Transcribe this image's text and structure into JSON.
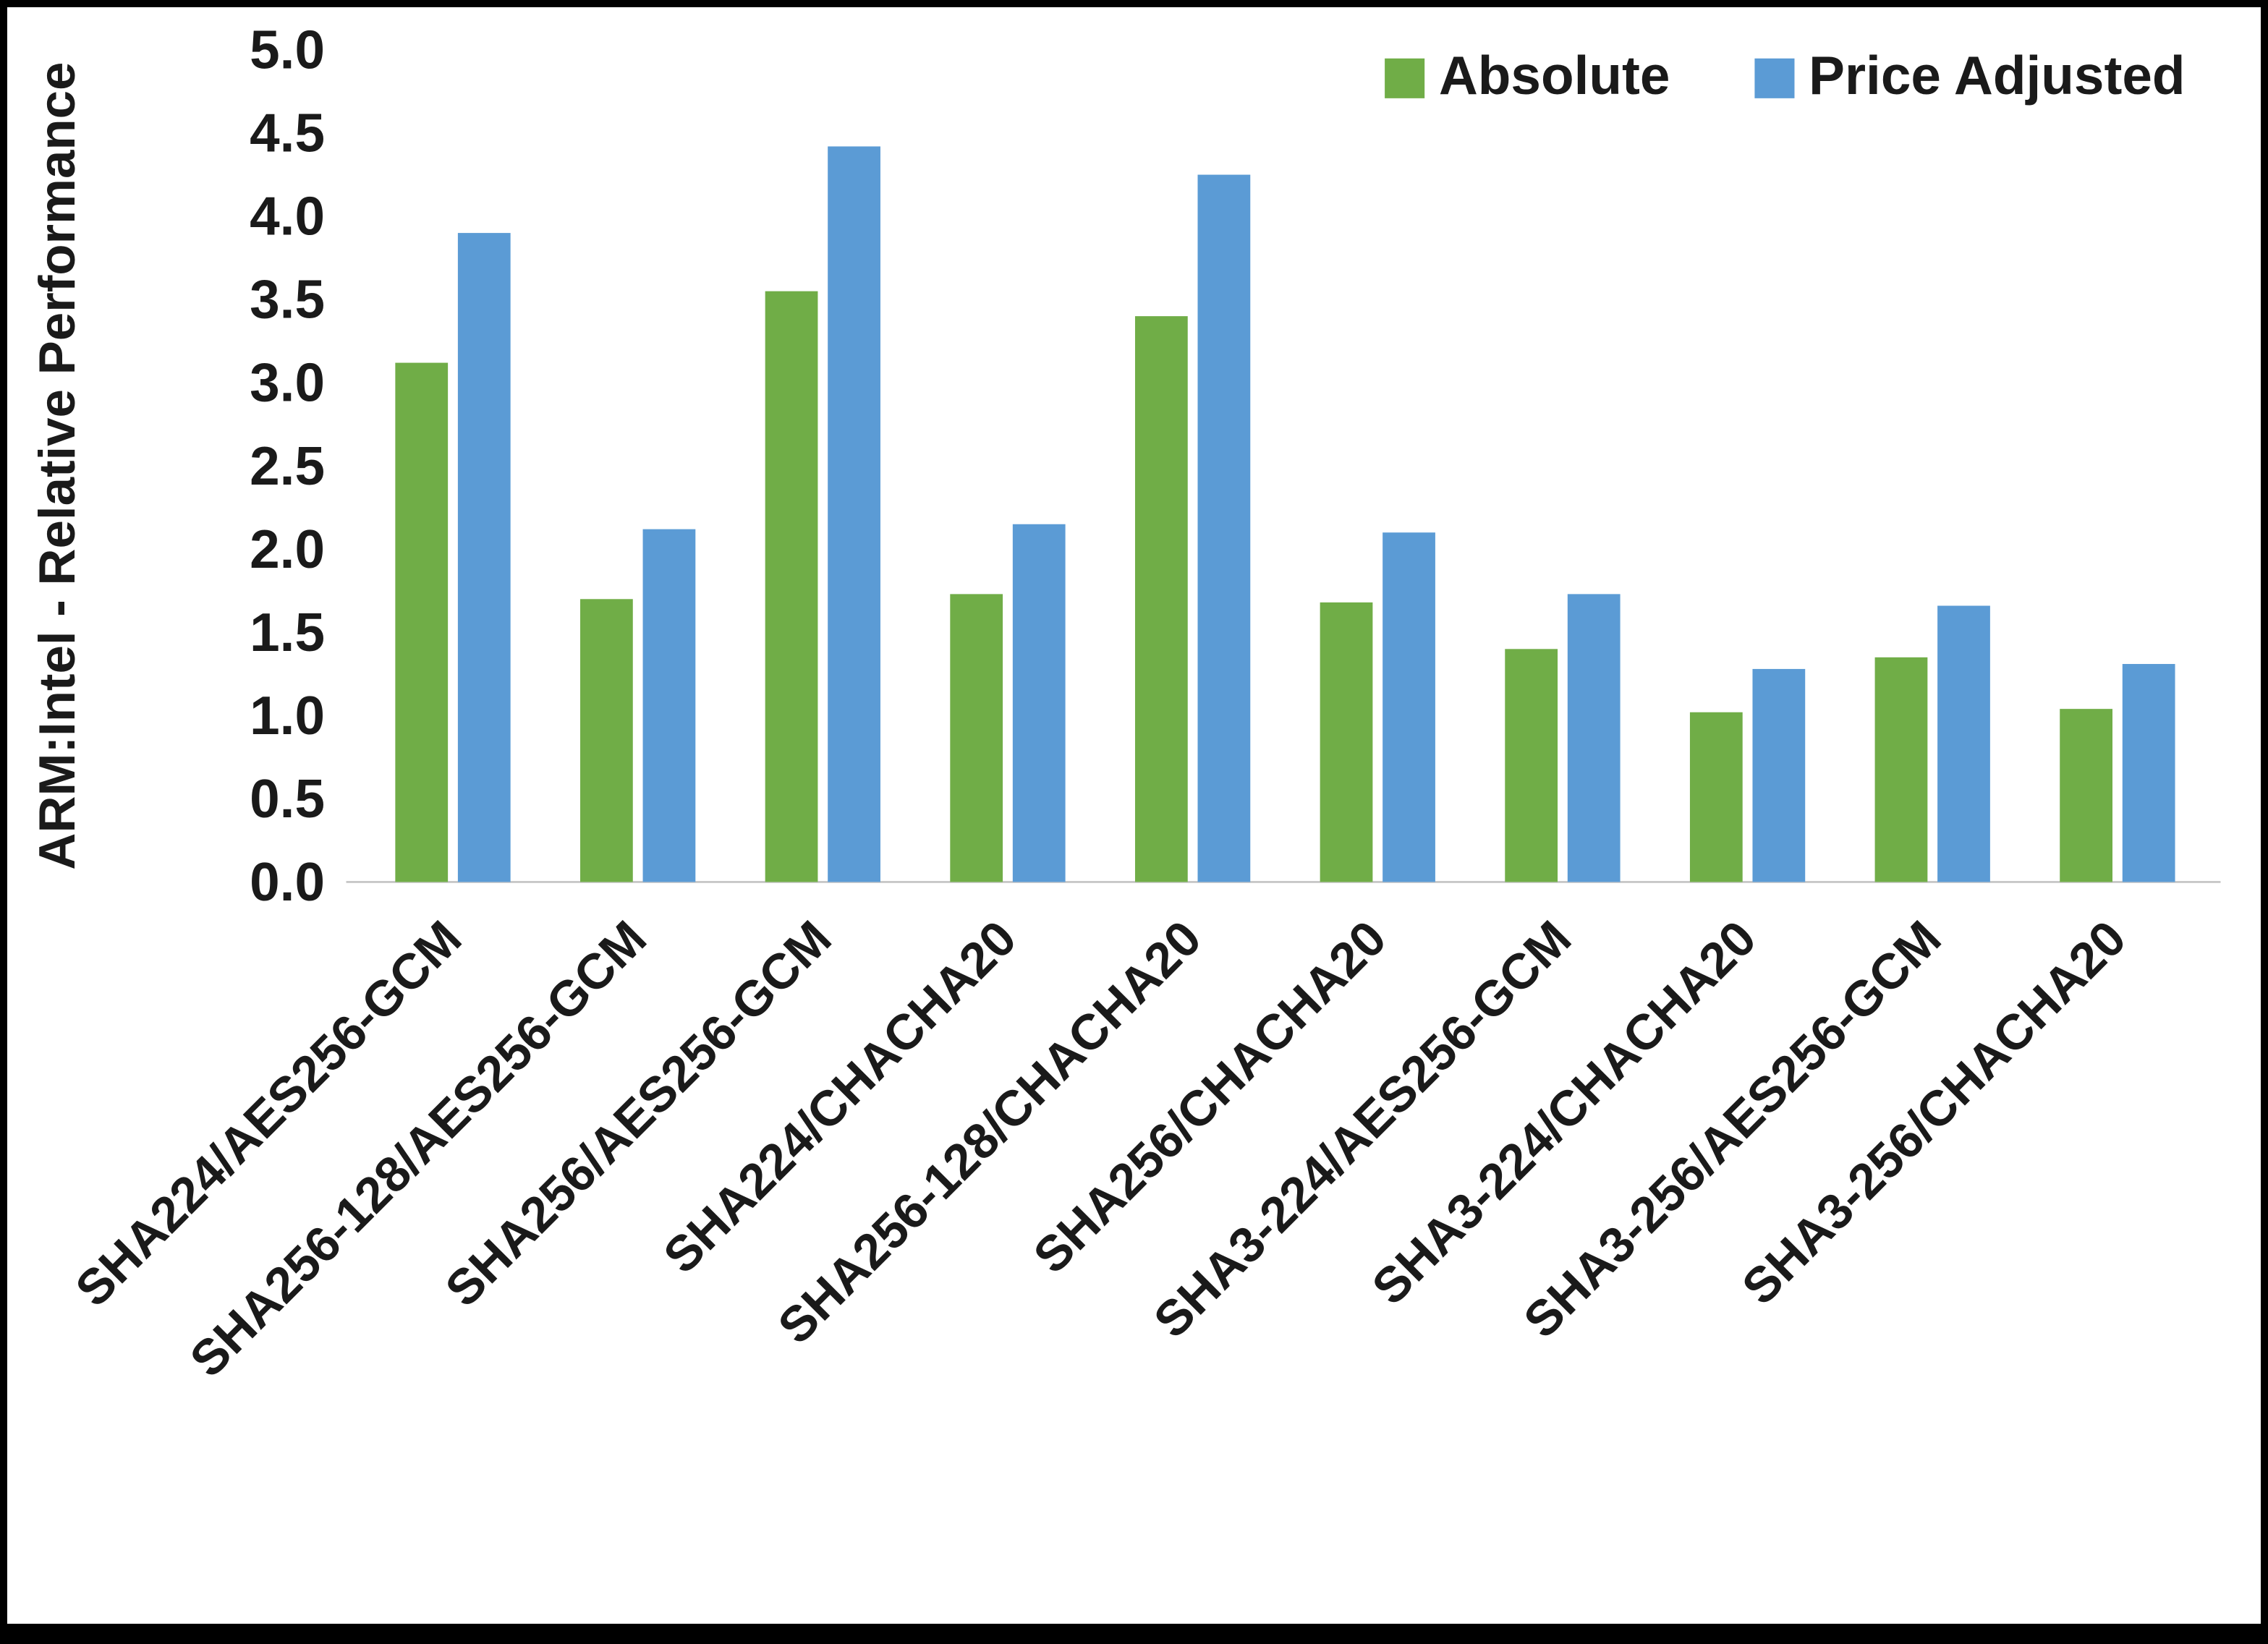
{
  "chart_data": {
    "type": "bar",
    "title": "",
    "xlabel": "",
    "ylabel": "ARM:Intel - Relative Performance",
    "ylim": [
      0,
      5
    ],
    "ytick_step": 0.5,
    "ytick_labels": [
      "0.0",
      "0.5",
      "1.0",
      "1.5",
      "2.0",
      "2.5",
      "3.0",
      "3.5",
      "4.0",
      "4.5",
      "5.0"
    ],
    "grid": false,
    "legend_position": "top-right",
    "categories": [
      "SHA224/AES256-GCM",
      "SHA256-128/AES256-GCM",
      "SHA256/AES256-GCM",
      "SHA224/CHACHA20",
      "SHA256-128/CHACHA20",
      "SHA256/CHACHA20",
      "SHA3-224/AES256-GCM",
      "SHA3-224/CHACHA20",
      "SHA3-256/AES256-GCM",
      "SHA3-256/CHACHA20"
    ],
    "series": [
      {
        "name": "Absolute",
        "color": "#70AD47",
        "values": [
          3.12,
          1.7,
          3.55,
          1.73,
          3.4,
          1.68,
          1.4,
          1.02,
          1.35,
          1.04
        ]
      },
      {
        "name": "Price Adjusted",
        "color": "#5B9BD5",
        "values": [
          3.9,
          2.12,
          4.42,
          2.15,
          4.25,
          2.1,
          1.73,
          1.28,
          1.66,
          1.31
        ]
      }
    ],
    "axis_line_color": "#c8c8c8",
    "text_color": "#1a1a1a"
  }
}
